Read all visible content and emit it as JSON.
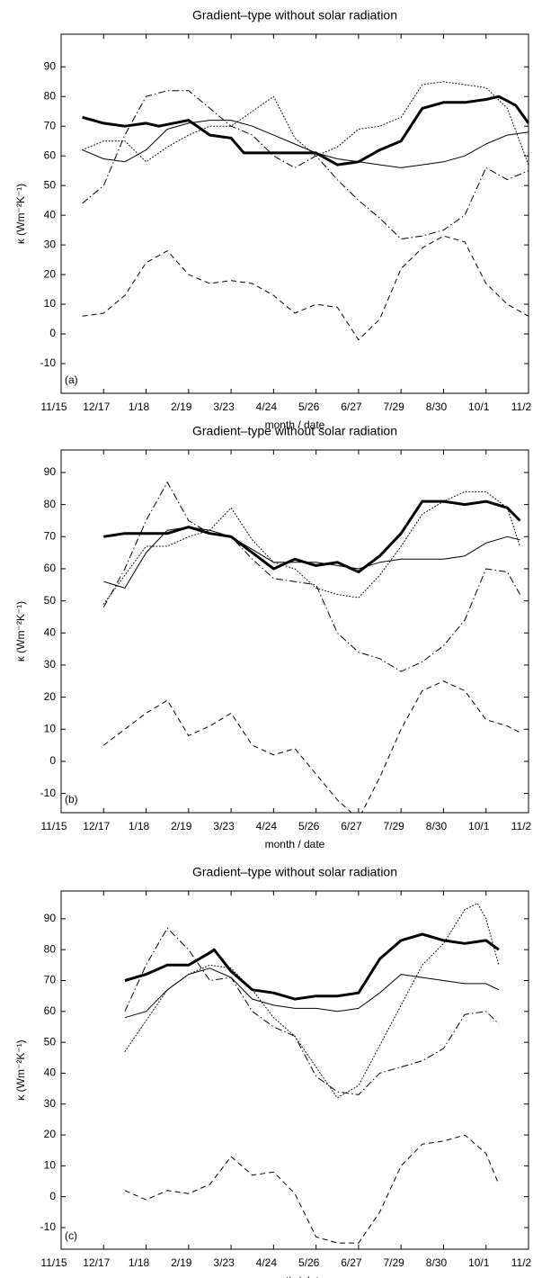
{
  "chart_data": [
    {
      "type": "line",
      "title": "Gradient–type  without  solar radiation",
      "xlabel": "month / date",
      "ylabel": "κ (Wm⁻²K⁻¹)",
      "annotation": "(a)",
      "xlim": [
        0,
        11
      ],
      "ylim": [
        -20,
        101
      ],
      "xticks": [
        {
          "value": 0,
          "label": "11/15"
        },
        {
          "value": 1,
          "label": "12/17"
        },
        {
          "value": 2,
          "label": "1/18"
        },
        {
          "value": 3,
          "label": "2/19"
        },
        {
          "value": 4,
          "label": "3/23"
        },
        {
          "value": 5,
          "label": "4/24"
        },
        {
          "value": 6,
          "label": "5/26"
        },
        {
          "value": 7,
          "label": "6/27"
        },
        {
          "value": 8,
          "label": "7/29"
        },
        {
          "value": 9,
          "label": "8/30"
        },
        {
          "value": 10,
          "label": "10/1"
        },
        {
          "value": 11,
          "label": "11/2"
        }
      ],
      "yticks": [
        -10,
        0,
        10,
        20,
        30,
        40,
        50,
        60,
        70,
        80,
        90
      ],
      "series": [
        {
          "color": "#000",
          "style": "solid",
          "width": 3,
          "x": [
            0.5,
            1,
            1.5,
            2,
            2.3,
            3,
            3.5,
            4,
            4.3,
            5,
            5.5,
            6,
            6.5,
            7,
            7.5,
            8,
            8.5,
            9,
            9.5,
            10,
            10.3,
            10.7,
            11
          ],
          "values": [
            73,
            71,
            70,
            71,
            70,
            72,
            67,
            66,
            61,
            61,
            61,
            61,
            57,
            58,
            62,
            65,
            76,
            78,
            78,
            79,
            80,
            77,
            71
          ]
        },
        {
          "color": "#000",
          "style": "solid",
          "width": 1,
          "x": [
            0.5,
            1,
            1.5,
            2,
            2.5,
            3,
            3.5,
            4,
            4.5,
            5,
            5.5,
            6,
            6.5,
            7,
            7.5,
            8,
            8.5,
            9,
            9.5,
            10,
            10.5,
            11,
            11.1
          ],
          "values": [
            62,
            59,
            58,
            62,
            69,
            71,
            72,
            72,
            70,
            67,
            64,
            61,
            59,
            58,
            57,
            56,
            57,
            58,
            60,
            64,
            67,
            68,
            66
          ]
        },
        {
          "color": "#000",
          "style": "dotted",
          "width": 1,
          "x": [
            0.5,
            1,
            1.5,
            2,
            2.5,
            3,
            3.5,
            4,
            4.5,
            5,
            5.5,
            6,
            6.5,
            7,
            7.5,
            8,
            8.5,
            9,
            9.5,
            10,
            10.5,
            11
          ],
          "values": [
            62,
            65,
            65,
            58,
            63,
            67,
            70,
            70,
            75,
            80,
            66,
            60,
            63,
            69,
            70,
            73,
            84,
            85,
            84,
            83,
            76,
            57
          ]
        },
        {
          "color": "#000",
          "style": "dashdot",
          "width": 1,
          "x": [
            0.5,
            1,
            1.5,
            2,
            2.5,
            3,
            3.5,
            4,
            4.5,
            5,
            5.5,
            6,
            6.5,
            7,
            7.5,
            8,
            8.5,
            9,
            9.5,
            10,
            10.5,
            11,
            11.1
          ],
          "values": [
            44,
            50,
            67,
            80,
            82,
            82,
            76,
            70,
            67,
            60,
            56,
            60,
            52,
            45,
            39,
            32,
            33,
            35,
            40,
            56,
            52,
            55,
            58
          ]
        },
        {
          "color": "#000",
          "style": "dashed",
          "width": 1,
          "x": [
            0.5,
            1,
            1.5,
            2,
            2.5,
            3,
            3.5,
            4,
            4.5,
            5,
            5.5,
            6,
            6.5,
            7,
            7.5,
            8,
            8.5,
            9,
            9.5,
            10,
            10.5,
            11,
            11.1
          ],
          "values": [
            6,
            7,
            13,
            24,
            28,
            20,
            17,
            18,
            17,
            13,
            7,
            10,
            9,
            -2,
            5,
            22,
            29,
            33,
            31,
            17,
            10,
            6,
            16
          ]
        }
      ]
    },
    {
      "type": "line",
      "title": "Gradient–type  without  solar radiation",
      "xlabel": "month / date",
      "ylabel": "κ (Wm⁻²K⁻¹)",
      "annotation": "(b)",
      "xlim": [
        0,
        11
      ],
      "ylim": [
        -16,
        97
      ],
      "xticks": [
        {
          "value": 0,
          "label": "11/15"
        },
        {
          "value": 1,
          "label": "12/17"
        },
        {
          "value": 2,
          "label": "1/18"
        },
        {
          "value": 3,
          "label": "2/19"
        },
        {
          "value": 4,
          "label": "3/23"
        },
        {
          "value": 5,
          "label": "4/24"
        },
        {
          "value": 6,
          "label": "5/26"
        },
        {
          "value": 7,
          "label": "6/27"
        },
        {
          "value": 8,
          "label": "7/29"
        },
        {
          "value": 9,
          "label": "8/30"
        },
        {
          "value": 10,
          "label": "10/1"
        },
        {
          "value": 11,
          "label": "11/2"
        }
      ],
      "yticks": [
        -10,
        0,
        10,
        20,
        30,
        40,
        50,
        60,
        70,
        80,
        90
      ],
      "series": [
        {
          "color": "#000",
          "style": "solid",
          "width": 3,
          "x": [
            1,
            1.5,
            2,
            2.5,
            3,
            3.5,
            4,
            4.5,
            5,
            5.5,
            6,
            6.5,
            7,
            7.5,
            8,
            8.5,
            9,
            9.5,
            10,
            10.5,
            10.8
          ],
          "values": [
            70,
            71,
            71,
            71,
            73,
            71,
            70,
            65,
            60,
            63,
            61,
            62,
            59,
            64,
            71,
            81,
            81,
            80,
            81,
            79,
            75
          ]
        },
        {
          "color": "#000",
          "style": "solid",
          "width": 1,
          "x": [
            1,
            1.5,
            2,
            2.5,
            3,
            3.5,
            4,
            4.5,
            5,
            5.5,
            6,
            6.5,
            7,
            7.5,
            8,
            8.5,
            9,
            9.5,
            10,
            10.5,
            10.8
          ],
          "values": [
            56,
            54,
            65,
            72,
            73,
            72,
            70,
            66,
            62,
            62,
            62,
            61,
            60,
            62,
            63,
            63,
            63,
            64,
            68,
            70,
            69
          ]
        },
        {
          "color": "#000",
          "style": "dotted",
          "width": 1,
          "x": [
            1,
            1.5,
            2,
            2.5,
            3,
            3.5,
            4,
            4.5,
            5,
            5.5,
            6,
            6.5,
            7,
            7.5,
            8,
            8.5,
            9,
            9.5,
            10,
            10.5,
            10.8
          ],
          "values": [
            49,
            58,
            67,
            67,
            70,
            72,
            79,
            69,
            62,
            60,
            54,
            52,
            51,
            58,
            67,
            77,
            81,
            84,
            84,
            79,
            67
          ]
        },
        {
          "color": "#000",
          "style": "dashdot",
          "width": 1,
          "x": [
            1,
            1.5,
            2,
            2.5,
            3,
            3.5,
            4,
            4.5,
            5,
            5.5,
            6,
            6.5,
            7,
            7.5,
            8,
            8.5,
            9,
            9.5,
            10,
            10.5,
            10.8
          ],
          "values": [
            48,
            60,
            75,
            87,
            75,
            71,
            70,
            63,
            57,
            56,
            55,
            40,
            34,
            32,
            28,
            31,
            36,
            44,
            60,
            59,
            52
          ]
        },
        {
          "color": "#000",
          "style": "dashed",
          "width": 1,
          "x": [
            1,
            1.5,
            2,
            2.5,
            3,
            3.5,
            4,
            4.5,
            5,
            5.5,
            6,
            6.5,
            7,
            7.5,
            8,
            8.5,
            9,
            9.5,
            10,
            10.5,
            10.8
          ],
          "values": [
            5,
            10,
            15,
            19,
            8,
            11,
            15,
            5,
            2,
            4,
            -4,
            -12,
            -18,
            -5,
            10,
            22,
            25,
            22,
            13,
            11,
            9
          ]
        }
      ]
    },
    {
      "type": "line",
      "title": "Gradient–type  without  solar radiation",
      "xlabel": "month / date",
      "ylabel": "κ (Wm⁻²K⁻¹)",
      "annotation": "(c)",
      "xlim": [
        0,
        11
      ],
      "ylim": [
        -17,
        99
      ],
      "xticks": [
        {
          "value": 0,
          "label": "11/15"
        },
        {
          "value": 1,
          "label": "12/17"
        },
        {
          "value": 2,
          "label": "1/18"
        },
        {
          "value": 3,
          "label": "2/19"
        },
        {
          "value": 4,
          "label": "3/23"
        },
        {
          "value": 5,
          "label": "4/24"
        },
        {
          "value": 6,
          "label": "5/26"
        },
        {
          "value": 7,
          "label": "6/27"
        },
        {
          "value": 8,
          "label": "7/29"
        },
        {
          "value": 9,
          "label": "8/30"
        },
        {
          "value": 10,
          "label": "10/1"
        },
        {
          "value": 11,
          "label": "11/2"
        }
      ],
      "yticks": [
        -10,
        0,
        10,
        20,
        30,
        40,
        50,
        60,
        70,
        80,
        90
      ],
      "series": [
        {
          "color": "#000",
          "style": "solid",
          "width": 3,
          "x": [
            1.5,
            2,
            2.5,
            3,
            3.5,
            3.6,
            4,
            4.5,
            5,
            5.5,
            6,
            6.5,
            7,
            7.5,
            8,
            8.5,
            9,
            9.5,
            10,
            10.3
          ],
          "values": [
            70,
            72,
            75,
            75,
            79,
            80,
            73,
            67,
            66,
            64,
            65,
            65,
            66,
            77,
            83,
            85,
            83,
            82,
            83,
            80
          ]
        },
        {
          "color": "#000",
          "style": "solid",
          "width": 1,
          "x": [
            1.5,
            2,
            2.5,
            3,
            3.5,
            4,
            4.5,
            5,
            5.5,
            6,
            6.5,
            7,
            7.5,
            8,
            8.5,
            9,
            9.5,
            10,
            10.3
          ],
          "values": [
            58,
            60,
            67,
            72,
            74,
            71,
            64,
            62,
            61,
            61,
            60,
            61,
            66,
            72,
            71,
            70,
            69,
            69,
            67
          ]
        },
        {
          "color": "#000",
          "style": "dotted",
          "width": 1,
          "x": [
            1.5,
            2,
            2.5,
            3,
            3.5,
            4,
            4.5,
            5,
            5.5,
            6,
            6.5,
            7,
            7.5,
            8,
            8.5,
            9,
            9.5,
            9.8,
            10,
            10.3
          ],
          "values": [
            47,
            57,
            67,
            72,
            75,
            74,
            67,
            58,
            52,
            42,
            32,
            36,
            49,
            62,
            75,
            82,
            93,
            95,
            90,
            75
          ]
        },
        {
          "color": "#000",
          "style": "dashdot",
          "width": 1,
          "x": [
            1.5,
            2,
            2.5,
            3,
            3.5,
            4,
            4.5,
            5,
            5.5,
            6,
            6.5,
            7,
            7.5,
            8,
            8.5,
            9,
            9.5,
            10,
            10.3
          ],
          "values": [
            60,
            75,
            87,
            80,
            70,
            71,
            60,
            55,
            52,
            39,
            34,
            33,
            40,
            42,
            44,
            48,
            59,
            60,
            56
          ]
        },
        {
          "color": "#000",
          "style": "dashed",
          "width": 1,
          "x": [
            1.5,
            2,
            2.5,
            3,
            3.5,
            4,
            4.5,
            5,
            5.5,
            6,
            6.5,
            7,
            7.5,
            8,
            8.5,
            9,
            9.5,
            10,
            10.3
          ],
          "values": [
            2,
            -1,
            2,
            1,
            4,
            13,
            7,
            8,
            1,
            -13,
            -15,
            -15,
            -5,
            10,
            17,
            18,
            20,
            14,
            4
          ]
        }
      ]
    }
  ]
}
